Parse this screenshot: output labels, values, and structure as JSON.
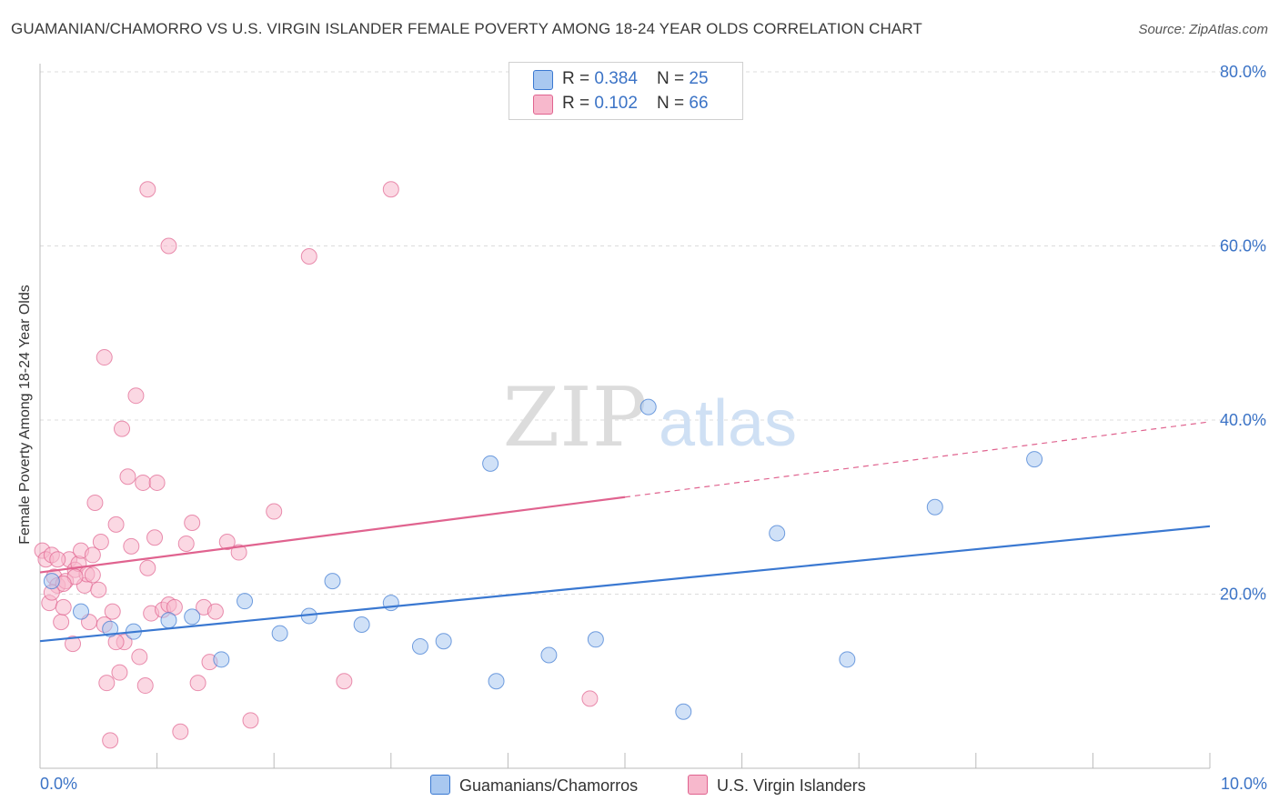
{
  "title": "GUAMANIAN/CHAMORRO VS U.S. VIRGIN ISLANDER FEMALE POVERTY AMONG 18-24 YEAR OLDS CORRELATION CHART",
  "source": "Source: ZipAtlas.com",
  "watermark": {
    "zip": "ZIP",
    "atlas": "atlas"
  },
  "legend_top": {
    "rows": [
      {
        "r_label": "R = ",
        "r_value": "0.384",
        "n_label": "N = ",
        "n_value": "25",
        "color": "#a9c8f0"
      },
      {
        "r_label": "R = ",
        "r_value": "0.102",
        "n_label": "N = ",
        "n_value": "66",
        "color": "#f7b8cc"
      }
    ]
  },
  "legend_bottom": {
    "series1": "Guamanians/Chamorros",
    "series2": "U.S. Virgin Islanders"
  },
  "x_ticks": {
    "left": "0.0%",
    "right": "10.0%"
  },
  "colors": {
    "blue": "#3a78d1",
    "blue_fill": "#a9c8f0",
    "pink": "#e0638f",
    "pink_fill": "#f7b8cc",
    "tick_text": "#3b73c6",
    "grid": "#dcdcdc"
  },
  "chart_data": {
    "type": "scatter",
    "title": "GUAMANIAN/CHAMORRO VS U.S. VIRGIN ISLANDER FEMALE POVERTY AMONG 18-24 YEAR OLDS CORRELATION CHART",
    "xlabel": "",
    "ylabel": "Female Poverty Among 18-24 Year Olds",
    "xlim": [
      0,
      10
    ],
    "ylim": [
      0,
      80
    ],
    "y_ticks": [
      20,
      40,
      60,
      80
    ],
    "y_tick_labels": [
      "20.0%",
      "40.0%",
      "60.0%",
      "80.0%"
    ],
    "grid": true,
    "series": [
      {
        "name": "Guamanians/Chamorros",
        "r": 0.384,
        "n": 25,
        "trend": {
          "x0": 0,
          "y0": 14.6,
          "x1": 10,
          "y1": 27.8,
          "dashed_from": null
        },
        "points": [
          [
            0.1,
            21.5
          ],
          [
            0.35,
            18.0
          ],
          [
            0.6,
            16.0
          ],
          [
            0.8,
            15.7
          ],
          [
            1.1,
            17.0
          ],
          [
            1.3,
            17.4
          ],
          [
            1.55,
            12.5
          ],
          [
            1.75,
            19.2
          ],
          [
            2.05,
            15.5
          ],
          [
            2.3,
            17.5
          ],
          [
            2.5,
            21.5
          ],
          [
            2.75,
            16.5
          ],
          [
            3.0,
            19.0
          ],
          [
            3.25,
            14.0
          ],
          [
            3.45,
            14.6
          ],
          [
            3.85,
            35.0
          ],
          [
            3.9,
            10.0
          ],
          [
            4.35,
            13.0
          ],
          [
            4.75,
            14.8
          ],
          [
            5.2,
            41.5
          ],
          [
            5.5,
            6.5
          ],
          [
            6.3,
            27.0
          ],
          [
            6.9,
            12.5
          ],
          [
            7.65,
            30.0
          ],
          [
            8.5,
            35.5
          ]
        ]
      },
      {
        "name": "U.S. Virgin Islanders",
        "r": 0.102,
        "n": 66,
        "trend": {
          "x0": 0,
          "y0": 22.5,
          "x1": 10,
          "y1": 39.8,
          "dashed_from": 5.0
        },
        "points": [
          [
            0.02,
            25.0
          ],
          [
            0.05,
            24.0
          ],
          [
            0.08,
            19.0
          ],
          [
            0.1,
            24.5
          ],
          [
            0.12,
            22.0
          ],
          [
            0.15,
            21.0
          ],
          [
            0.18,
            16.8
          ],
          [
            0.2,
            18.5
          ],
          [
            0.22,
            21.5
          ],
          [
            0.25,
            24.0
          ],
          [
            0.28,
            14.3
          ],
          [
            0.3,
            22.8
          ],
          [
            0.33,
            23.5
          ],
          [
            0.35,
            25.0
          ],
          [
            0.38,
            21.0
          ],
          [
            0.4,
            22.3
          ],
          [
            0.42,
            16.8
          ],
          [
            0.45,
            24.5
          ],
          [
            0.47,
            30.5
          ],
          [
            0.5,
            20.5
          ],
          [
            0.52,
            26.0
          ],
          [
            0.55,
            47.2
          ],
          [
            0.57,
            9.8
          ],
          [
            0.6,
            3.2
          ],
          [
            0.62,
            18.0
          ],
          [
            0.65,
            28.0
          ],
          [
            0.68,
            11.0
          ],
          [
            0.7,
            39.0
          ],
          [
            0.72,
            14.5
          ],
          [
            0.75,
            33.5
          ],
          [
            0.78,
            25.5
          ],
          [
            0.82,
            42.8
          ],
          [
            0.85,
            12.8
          ],
          [
            0.88,
            32.8
          ],
          [
            0.9,
            9.5
          ],
          [
            0.92,
            23.0
          ],
          [
            0.95,
            17.8
          ],
          [
            0.98,
            26.5
          ],
          [
            1.0,
            32.8
          ],
          [
            1.05,
            18.2
          ],
          [
            1.1,
            18.8
          ],
          [
            1.15,
            18.5
          ],
          [
            1.2,
            4.2
          ],
          [
            1.25,
            25.8
          ],
          [
            1.3,
            28.2
          ],
          [
            1.35,
            9.8
          ],
          [
            1.4,
            18.5
          ],
          [
            1.45,
            12.2
          ],
          [
            1.5,
            18.0
          ],
          [
            1.6,
            26.0
          ],
          [
            1.7,
            24.8
          ],
          [
            1.8,
            5.5
          ],
          [
            2.0,
            29.5
          ],
          [
            2.3,
            58.8
          ],
          [
            2.6,
            10.0
          ],
          [
            3.0,
            66.5
          ],
          [
            1.1,
            60.0
          ],
          [
            0.92,
            66.5
          ],
          [
            4.7,
            8.0
          ],
          [
            0.3,
            22.0
          ],
          [
            0.15,
            24.0
          ],
          [
            0.45,
            22.2
          ],
          [
            0.55,
            16.5
          ],
          [
            0.65,
            14.5
          ],
          [
            0.2,
            21.2
          ],
          [
            0.1,
            20.2
          ]
        ]
      }
    ]
  }
}
